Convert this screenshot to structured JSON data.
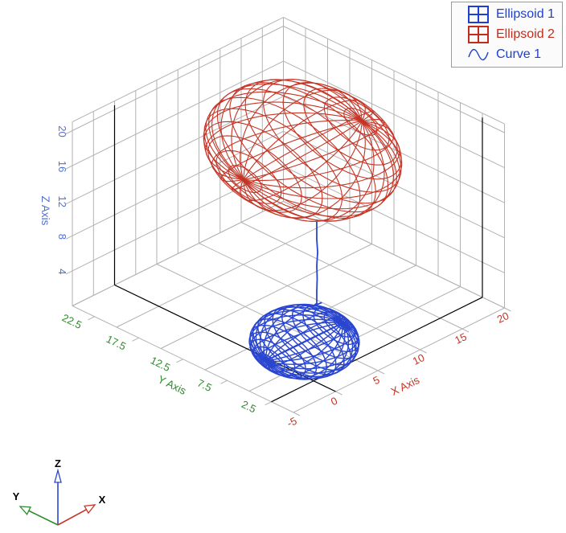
{
  "legend": {
    "items": [
      {
        "label": "Ellipsoid 1",
        "color": "#1f3fd0",
        "icon": "grid-icon"
      },
      {
        "label": "Ellipsoid 2",
        "color": "#c32c1c",
        "icon": "grid-icon"
      },
      {
        "label": "Curve 1",
        "color": "#1f3fd0",
        "icon": "curve-icon"
      }
    ]
  },
  "chart_data": {
    "type": "3d-wireframe",
    "title": "",
    "axes": {
      "x": {
        "label": "X Axis",
        "color": "#c53526",
        "ticks": [
          -5,
          0,
          5,
          10,
          15,
          20
        ],
        "range": [
          -5,
          20
        ]
      },
      "y": {
        "label": "Y Axis",
        "color": "#2e8b2e",
        "ticks": [
          2.5,
          7.5,
          12.5,
          17.5,
          22.5
        ],
        "range": [
          0,
          25
        ]
      },
      "z": {
        "label": "Z Axis",
        "color": "#5070d0",
        "ticks": [
          4,
          8,
          12,
          16,
          20
        ],
        "range": [
          0,
          21
        ]
      }
    },
    "grid": {
      "color": "#b2b2b2",
      "x_step": 5,
      "y_step": 5,
      "z_step": 4,
      "wall_substep": 2.5
    },
    "box_color": "#000000",
    "series": [
      {
        "name": "Ellipsoid 1",
        "type": "ellipsoid",
        "color": "#2a46d0",
        "center": [
          1,
          4.5,
          3
        ],
        "radii": [
          4.5,
          4.5,
          3
        ]
      },
      {
        "name": "Ellipsoid 2",
        "type": "ellipsoid",
        "color": "#c53526",
        "center": [
          5,
          8.5,
          21
        ],
        "radii": [
          7,
          9,
          6
        ]
      },
      {
        "name": "Curve 1",
        "type": "line",
        "color": "#2a46d0",
        "points": [
          [
            3,
            5,
            15.5
          ],
          [
            3,
            5,
            13.5
          ],
          [
            3.1,
            5,
            12
          ],
          [
            3,
            5,
            10.5
          ],
          [
            3.05,
            5,
            9
          ],
          [
            3,
            5,
            7.5
          ],
          [
            3,
            5,
            6.2
          ],
          [
            2.6,
            5,
            6.1
          ],
          [
            3.6,
            5,
            6.0
          ]
        ]
      }
    ]
  },
  "orientation_indicator": {
    "x": {
      "label": "X",
      "color": "#c53526"
    },
    "y": {
      "label": "Y",
      "color": "#2e8b2e"
    },
    "z": {
      "label": "Z",
      "color": "#2a46d0"
    }
  }
}
